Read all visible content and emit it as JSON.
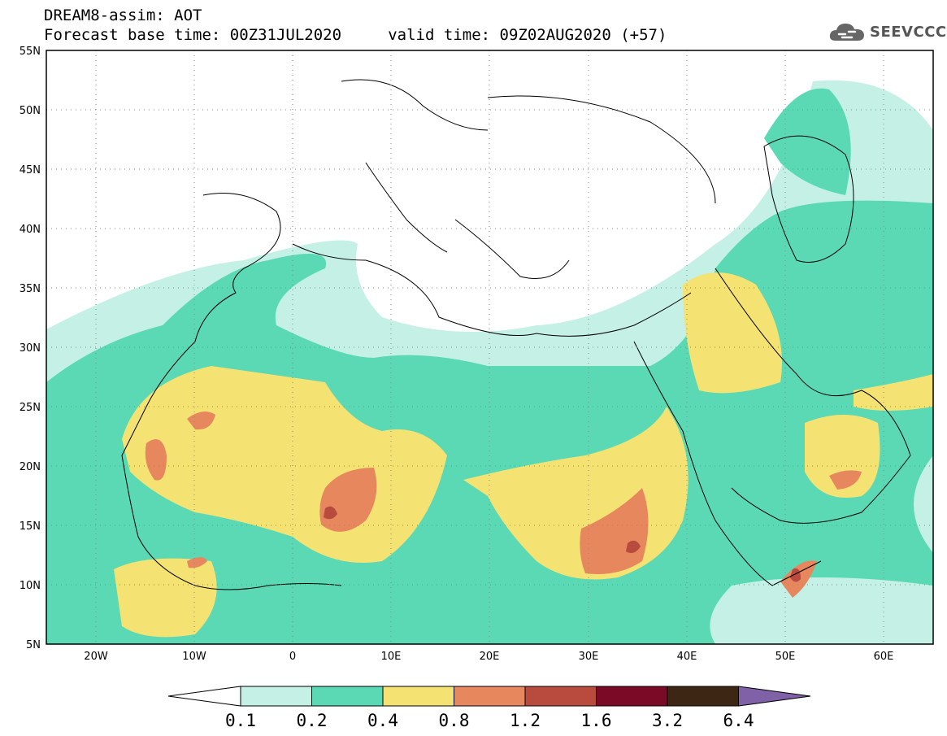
{
  "header": {
    "line1": "DREAM8-assim: AOT",
    "line2": "Forecast base time: 00Z31JUL2020     valid time: 09Z02AUG2020 (+57)"
  },
  "logo": {
    "text": "SEEVCCC",
    "icon": "cloud-icon"
  },
  "map": {
    "lon_range": [
      -25,
      65
    ],
    "lat_range": [
      5,
      55
    ],
    "lat_ticks": [
      "55N",
      "50N",
      "45N",
      "40N",
      "35N",
      "30N",
      "25N",
      "20N",
      "15N",
      "10N",
      "5N"
    ],
    "lon_ticks": [
      "20W",
      "10W",
      "0",
      "10E",
      "20E",
      "30E",
      "40E",
      "50E",
      "60E"
    ]
  },
  "colorbar": {
    "labels": [
      "0.1",
      "0.2",
      "0.4",
      "0.8",
      "1.2",
      "1.6",
      "3.2",
      "6.4"
    ],
    "colors": [
      "#ffffff",
      "#c4f0e6",
      "#5ad9b4",
      "#f4e273",
      "#e6875e",
      "#b84a3e",
      "#7a0a26",
      "#3d2714",
      "#8060a6"
    ]
  }
}
